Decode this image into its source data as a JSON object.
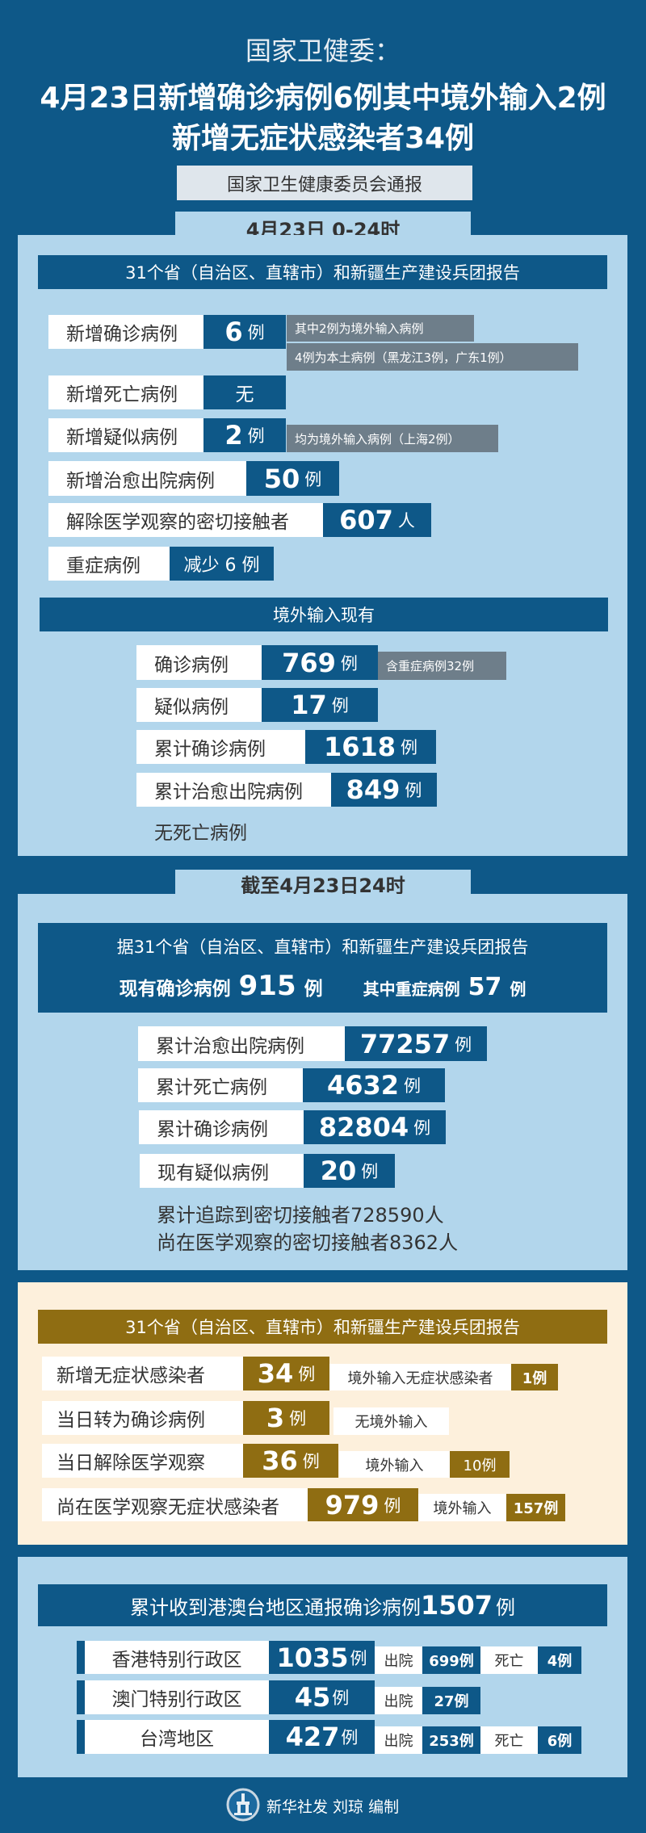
{
  "header": {
    "subtitle": "国家卫健委：",
    "title_line1": "4月23日新增确诊病例6例其中境外输入2例",
    "title_line2": "新增无症状感染者34例",
    "source": "国家卫生健康委员会通报"
  },
  "daily": {
    "tab": "4月23日 0-24时",
    "report_header": "31个省（自治区、直辖市）和新疆生产建设兵团报告",
    "rows": [
      {
        "label": "新增确诊病例",
        "value": "6",
        "unit": "例",
        "notes": [
          "其中2例为境外输入病例",
          "4例为本土病例（黑龙江3例，广东1例）"
        ]
      },
      {
        "label": "新增死亡病例",
        "value": "无",
        "unit": ""
      },
      {
        "label": "新增疑似病例",
        "value": "2",
        "unit": "例",
        "notes": [
          "均为境外输入病例（上海2例）"
        ]
      },
      {
        "label": "新增治愈出院病例",
        "value": "50",
        "unit": "例"
      },
      {
        "label": "解除医学观察的密切接触者",
        "value": "607",
        "unit": "人"
      },
      {
        "label": "重症病例",
        "value": "减少 6 例",
        "unit": ""
      }
    ],
    "imported": {
      "header": "境外输入现有",
      "rows": [
        {
          "label": "确诊病例",
          "value": "769",
          "unit": "例",
          "note": "含重症病例32例"
        },
        {
          "label": "疑似病例",
          "value": "17",
          "unit": "例"
        },
        {
          "label": "累计确诊病例",
          "value": "1618",
          "unit": "例"
        },
        {
          "label": "累计治愈出院病例",
          "value": "849",
          "unit": "例"
        }
      ],
      "no_death": "无死亡病例"
    }
  },
  "cumulative": {
    "tab": "截至4月23日24时",
    "report_header": "据31个省（自治区、直辖市）和新疆生产建设兵团报告",
    "current_label": "现有确诊病例",
    "current_value": "915",
    "unit": "例",
    "severe_label": "其中重症病例",
    "severe_value": "57",
    "rows": [
      {
        "label": "累计治愈出院病例",
        "value": "77257",
        "unit": "例"
      },
      {
        "label": "累计死亡病例",
        "value": "4632",
        "unit": "例"
      },
      {
        "label": "累计确诊病例",
        "value": "82804",
        "unit": "例"
      },
      {
        "label": "现有疑似病例",
        "value": "20",
        "unit": "例"
      }
    ],
    "contacts_traced": "累计追踪到密切接触者728590人",
    "contacts_observed": "尚在医学观察的密切接触者8362人"
  },
  "asymptomatic": {
    "header": "31个省（自治区、直辖市）和新疆生产建设兵团报告",
    "rows": [
      {
        "label": "新增无症状感染者",
        "value": "34",
        "unit": "例",
        "note_label": "境外输入无症状感染者",
        "note_value": "1例"
      },
      {
        "label": "当日转为确诊病例",
        "value": "3",
        "unit": "例",
        "note_label": "无境外输入"
      },
      {
        "label": "当日解除医学观察",
        "value": "36",
        "unit": "例",
        "note_label": "境外输入",
        "note_value": "10例"
      },
      {
        "label": "尚在医学观察无症状感染者",
        "value": "979",
        "unit": "例",
        "note_label": "境外输入",
        "note_value": "157例"
      }
    ]
  },
  "hmt": {
    "header_text": "累计收到港澳台地区通报确诊病例",
    "header_value": "1507",
    "header_unit": "例",
    "rows": [
      {
        "region": "香港特别行政区",
        "value": "1035",
        "unit": "例",
        "discharged_label": "出院",
        "discharged": "699例",
        "death_label": "死亡",
        "deaths": "4例"
      },
      {
        "region": "澳门特别行政区",
        "value": "45",
        "unit": "例",
        "discharged_label": "出院",
        "discharged": "27例"
      },
      {
        "region": "台湾地区",
        "value": "427",
        "unit": "例",
        "discharged_label": "出院",
        "discharged": "253例",
        "death_label": "死亡",
        "deaths": "6例"
      }
    ]
  },
  "footer": {
    "logo_text": "XINHUA",
    "credit": "新华社发 刘琼 编制"
  },
  "colors": {
    "background": "#0e5888",
    "panel": "#b2d6ec",
    "beige": "#fdf0dc",
    "gold": "#8f6d12",
    "note_gray": "#6e7e8a"
  }
}
